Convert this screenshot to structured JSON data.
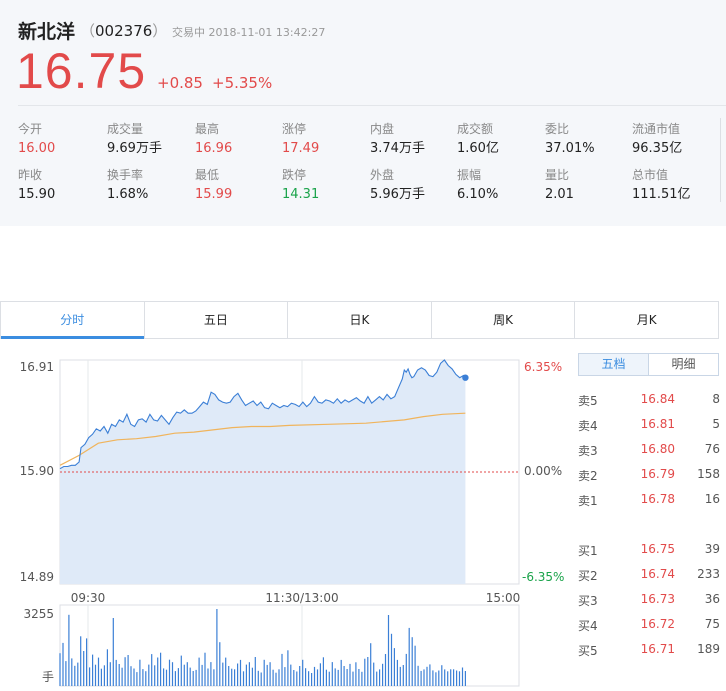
{
  "header": {
    "name": "新北洋",
    "code": "002376",
    "bracket_open": "（",
    "bracket_close": "）",
    "status": "交易中 2018-11-01 13:42:27",
    "price": "16.75",
    "change": "+0.85",
    "change_pct": "+5.35%"
  },
  "stats": [
    {
      "label": "今开",
      "value": "16.00",
      "tone": "red"
    },
    {
      "label": "成交量",
      "value": "9.69万手",
      "tone": "plain"
    },
    {
      "label": "最高",
      "value": "16.96",
      "tone": "red"
    },
    {
      "label": "涨停",
      "value": "17.49",
      "tone": "red"
    },
    {
      "label": "内盘",
      "value": "3.74万手",
      "tone": "plain"
    },
    {
      "label": "成交额",
      "value": "1.60亿",
      "tone": "plain"
    },
    {
      "label": "委比",
      "value": "37.01%",
      "tone": "plain"
    },
    {
      "label": "流通市值",
      "value": "96.35亿",
      "tone": "plain"
    },
    {
      "label": "昨收",
      "value": "15.90",
      "tone": "plain"
    },
    {
      "label": "换手率",
      "value": "1.68%",
      "tone": "plain"
    },
    {
      "label": "最低",
      "value": "15.99",
      "tone": "red"
    },
    {
      "label": "跌停",
      "value": "14.31",
      "tone": "green"
    },
    {
      "label": "外盘",
      "value": "5.96万手",
      "tone": "plain"
    },
    {
      "label": "振幅",
      "value": "6.10%",
      "tone": "plain"
    },
    {
      "label": "量比",
      "value": "2.01",
      "tone": "plain"
    },
    {
      "label": "总市值",
      "value": "111.51亿",
      "tone": "plain"
    }
  ],
  "tabs": [
    "分时",
    "五日",
    "日K",
    "周K",
    "月K"
  ],
  "active_tab": "分时",
  "order_book": {
    "tabs": [
      "五档",
      "明细"
    ],
    "active": "五档",
    "asks": [
      {
        "label": "卖5",
        "price": "16.84",
        "volume": "8"
      },
      {
        "label": "卖4",
        "price": "16.81",
        "volume": "5"
      },
      {
        "label": "卖3",
        "price": "16.80",
        "volume": "76"
      },
      {
        "label": "卖2",
        "price": "16.79",
        "volume": "158"
      },
      {
        "label": "卖1",
        "price": "16.78",
        "volume": "16"
      }
    ],
    "bids": [
      {
        "label": "买1",
        "price": "16.75",
        "volume": "39"
      },
      {
        "label": "买2",
        "price": "16.74",
        "volume": "233"
      },
      {
        "label": "买3",
        "price": "16.73",
        "volume": "36"
      },
      {
        "label": "买4",
        "price": "16.72",
        "volume": "75"
      },
      {
        "label": "买5",
        "price": "16.71",
        "volume": "189"
      }
    ]
  },
  "chart_data": {
    "type": "line",
    "y_left_ticks": [
      "16.91",
      "15.90",
      "14.89"
    ],
    "y_right_ticks": [
      "6.35%",
      "0.00%",
      "-6.35%"
    ],
    "x_ticks": [
      "09:30",
      "11:30/13:00",
      "15:00"
    ],
    "volume_tick": "3255",
    "volume_unit": "手",
    "prev_close": 15.9,
    "ylim": [
      14.89,
      16.91
    ],
    "volume_max": 3255,
    "minutes_total": 240,
    "colors": {
      "price": "#3b7fd6",
      "avg": "#f0b45c",
      "fill": "#dfeaf8",
      "baseline": "#e24a4a",
      "volume": "#3b7fd6"
    },
    "series": [
      {
        "name": "price",
        "values": [
          [
            0,
            15.93
          ],
          [
            2,
            15.95
          ],
          [
            4,
            15.95
          ],
          [
            6,
            15.96
          ],
          [
            8,
            15.96
          ],
          [
            10,
            15.99
          ],
          [
            11,
            16.12
          ],
          [
            13,
            16.15
          ],
          [
            15,
            16.21
          ],
          [
            17,
            16.24
          ],
          [
            19,
            16.29
          ],
          [
            21,
            16.27
          ],
          [
            23,
            16.31
          ],
          [
            25,
            16.25
          ],
          [
            27,
            16.33
          ],
          [
            29,
            16.31
          ],
          [
            31,
            16.37
          ],
          [
            33,
            16.35
          ],
          [
            35,
            16.42
          ],
          [
            37,
            16.33
          ],
          [
            39,
            16.31
          ],
          [
            41,
            16.37
          ],
          [
            43,
            16.38
          ],
          [
            45,
            16.35
          ],
          [
            47,
            16.42
          ],
          [
            49,
            16.37
          ],
          [
            51,
            16.36
          ],
          [
            53,
            16.41
          ],
          [
            55,
            16.37
          ],
          [
            57,
            16.33
          ],
          [
            59,
            16.39
          ],
          [
            61,
            16.44
          ],
          [
            63,
            16.43
          ],
          [
            65,
            16.46
          ],
          [
            67,
            16.43
          ],
          [
            69,
            16.43
          ],
          [
            71,
            16.45
          ],
          [
            73,
            16.49
          ],
          [
            75,
            16.53
          ],
          [
            77,
            16.51
          ],
          [
            79,
            16.62
          ],
          [
            81,
            16.6
          ],
          [
            83,
            16.55
          ],
          [
            85,
            16.53
          ],
          [
            87,
            16.52
          ],
          [
            89,
            16.53
          ],
          [
            91,
            16.58
          ],
          [
            93,
            16.61
          ],
          [
            95,
            16.55
          ],
          [
            97,
            16.5
          ],
          [
            99,
            16.52
          ],
          [
            101,
            16.54
          ],
          [
            103,
            16.5
          ],
          [
            105,
            16.53
          ],
          [
            107,
            16.48
          ],
          [
            109,
            16.47
          ],
          [
            111,
            16.52
          ],
          [
            113,
            16.5
          ],
          [
            115,
            16.48
          ],
          [
            117,
            16.5
          ],
          [
            119,
            16.49
          ],
          [
            121,
            16.52
          ],
          [
            123,
            16.51
          ],
          [
            125,
            16.49
          ],
          [
            127,
            16.53
          ],
          [
            129,
            16.49
          ],
          [
            131,
            16.52
          ],
          [
            133,
            16.58
          ],
          [
            135,
            16.53
          ],
          [
            137,
            16.52
          ],
          [
            139,
            16.55
          ],
          [
            141,
            16.54
          ],
          [
            143,
            16.52
          ],
          [
            145,
            16.56
          ],
          [
            147,
            16.52
          ],
          [
            149,
            16.55
          ],
          [
            151,
            16.53
          ],
          [
            153,
            16.55
          ],
          [
            155,
            16.57
          ],
          [
            157,
            16.54
          ],
          [
            159,
            16.52
          ],
          [
            161,
            16.58
          ],
          [
            163,
            16.52
          ],
          [
            165,
            16.55
          ],
          [
            167,
            16.58
          ],
          [
            169,
            16.55
          ],
          [
            171,
            16.6
          ],
          [
            173,
            16.56
          ],
          [
            175,
            16.58
          ],
          [
            177,
            16.66
          ],
          [
            179,
            16.74
          ],
          [
            180,
            16.82
          ],
          [
            181,
            16.8
          ],
          [
            182,
            16.83
          ],
          [
            183,
            16.78
          ],
          [
            184,
            16.75
          ],
          [
            185,
            16.76
          ],
          [
            187,
            16.82
          ],
          [
            189,
            16.84
          ],
          [
            191,
            16.82
          ],
          [
            193,
            16.77
          ],
          [
            195,
            16.76
          ],
          [
            197,
            16.8
          ],
          [
            199,
            16.88
          ],
          [
            201,
            16.91
          ],
          [
            203,
            16.86
          ],
          [
            205,
            16.83
          ],
          [
            207,
            16.78
          ],
          [
            209,
            16.75
          ],
          [
            211,
            16.77
          ],
          [
            212,
            16.75
          ]
        ]
      },
      {
        "name": "avg",
        "values": [
          [
            0,
            15.96
          ],
          [
            10,
            16.05
          ],
          [
            20,
            16.16
          ],
          [
            30,
            16.19
          ],
          [
            40,
            16.2
          ],
          [
            50,
            16.22
          ],
          [
            60,
            16.25
          ],
          [
            70,
            16.26
          ],
          [
            80,
            16.28
          ],
          [
            90,
            16.3
          ],
          [
            100,
            16.31
          ],
          [
            110,
            16.31
          ],
          [
            120,
            16.32
          ],
          [
            140,
            16.33
          ],
          [
            160,
            16.34
          ],
          [
            180,
            16.37
          ],
          [
            190,
            16.4
          ],
          [
            200,
            16.42
          ],
          [
            212,
            16.43
          ]
        ]
      }
    ],
    "volume": [
      1386,
      1820,
      1052,
      3010,
      1165,
      853,
      990,
      2101,
      1480,
      2012,
      788,
      1326,
      901,
      1201,
      733,
      877,
      1552,
      1004,
      2876,
      1103,
      930,
      774,
      1216,
      1309,
      836,
      741,
      588,
      1112,
      713,
      624,
      905,
      1350,
      877,
      1203,
      1408,
      744,
      690,
      1112,
      1004,
      630,
      755,
      1285,
      900,
      1004,
      777,
      633,
      681,
      1202,
      893,
      1406,
      740,
      1012,
      707,
      3255,
      1852,
      990,
      1201,
      844,
      730,
      704,
      951,
      1104,
      620,
      905,
      1004,
      772,
      1225,
      643,
      570,
      1106,
      890,
      1004,
      688,
      563,
      704,
      1355,
      801,
      1508,
      904,
      677,
      613,
      844,
      1109,
      752,
      627,
      550,
      806,
      701,
      958,
      1214,
      688,
      603,
      1010,
      745,
      680,
      1105,
      844,
      720,
      933,
      607,
      1001,
      720,
      601,
      1153,
      1226,
      1808,
      991,
      608,
      703,
      940,
      1354,
      3000,
      2207,
      1601,
      1102,
      806,
      888,
      1356,
      2457,
      2064,
      1704,
      855,
      640,
      702,
      810,
      913,
      660,
      580,
      655,
      880,
      702,
      620,
      707,
      704,
      655,
      620,
      780,
      633
    ]
  }
}
